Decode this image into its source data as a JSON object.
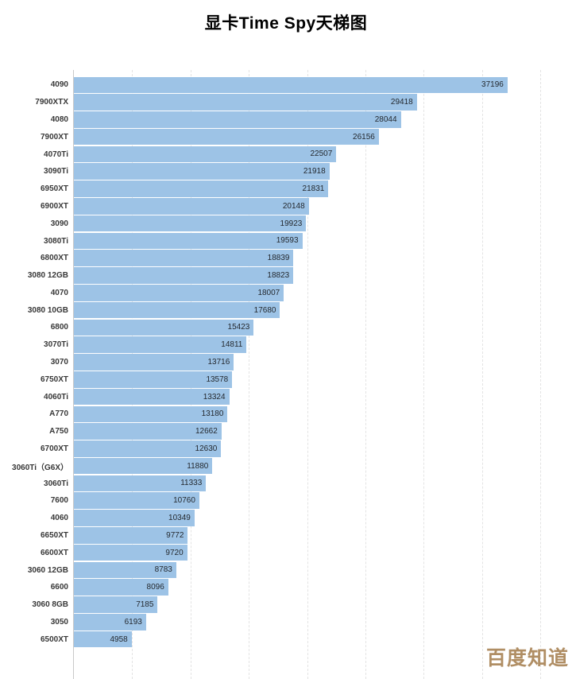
{
  "title": "显卡Time Spy天梯图",
  "watermark": "百度知道",
  "chart_data": {
    "type": "bar",
    "orientation": "horizontal",
    "title": "显卡Time Spy天梯图",
    "xlabel": "",
    "ylabel": "",
    "xlim": [
      0,
      40000
    ],
    "gridline_step": 5000,
    "grid": "dashed-vertical",
    "legend": "none",
    "bar_color": "#9dc3e6",
    "value_label_color": "#24292f",
    "value_label_position": "inside-end",
    "categories": [
      "4090",
      "7900XTX",
      "4080",
      "7900XT",
      "4070Ti",
      "3090Ti",
      "6950XT",
      "6900XT",
      "3090",
      "3080Ti",
      "6800XT",
      "3080 12GB",
      "4070",
      "3080 10GB",
      "6800",
      "3070Ti",
      "3070",
      "6750XT",
      "4060Ti",
      "A770",
      "A750",
      "6700XT",
      "3060Ti（G6X）",
      "3060Ti",
      "7600",
      "4060",
      "6650XT",
      "6600XT",
      "3060 12GB",
      "6600",
      "3060 8GB",
      "3050",
      "6500XT"
    ],
    "values": [
      37196,
      29418,
      28044,
      26156,
      22507,
      21918,
      21831,
      20148,
      19923,
      19593,
      18839,
      18823,
      18007,
      17680,
      15423,
      14811,
      13716,
      13578,
      13324,
      13180,
      12662,
      12630,
      11880,
      11333,
      10760,
      10349,
      9772,
      9720,
      8783,
      8096,
      7185,
      6193,
      4958
    ]
  }
}
